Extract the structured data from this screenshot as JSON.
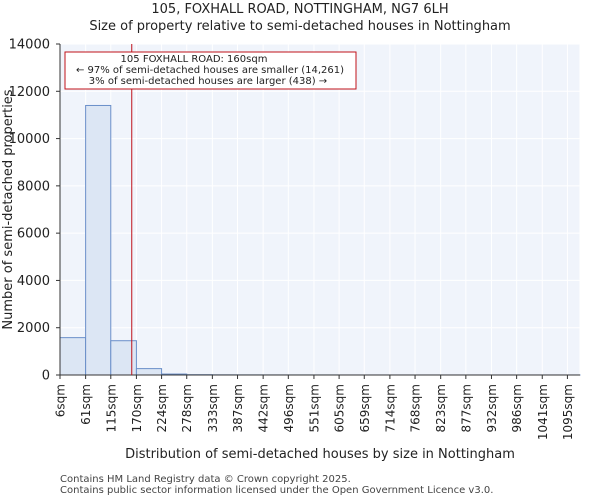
{
  "chart_data": {
    "type": "bar",
    "title": "105, FOXHALL ROAD, NOTTINGHAM, NG7 6LH",
    "subtitle": "Size of property relative to semi-detached houses in Nottingham",
    "xlabel": "Distribution of semi-detached houses by size in Nottingham",
    "ylabel": "Number of semi-detached properties",
    "ylim": [
      0,
      14000
    ],
    "yticks": [
      0,
      2000,
      4000,
      6000,
      8000,
      10000,
      12000,
      14000
    ],
    "xlim": [
      6,
      1122
    ],
    "bin_edges": [
      6,
      61,
      115,
      170,
      224,
      278,
      333,
      387,
      442,
      496,
      551,
      605,
      659,
      714,
      768,
      823,
      877,
      932,
      986,
      1041,
      1095,
      1122
    ],
    "categories": [
      "6sqm",
      "61sqm",
      "115sqm",
      "170sqm",
      "224sqm",
      "278sqm",
      "333sqm",
      "387sqm",
      "442sqm",
      "496sqm",
      "551sqm",
      "605sqm",
      "659sqm",
      "714sqm",
      "768sqm",
      "823sqm",
      "877sqm",
      "932sqm",
      "986sqm",
      "1041sqm",
      "1095sqm"
    ],
    "values": [
      1580,
      11400,
      1450,
      270,
      40,
      12,
      6,
      4,
      3,
      2,
      2,
      1,
      1,
      1,
      1,
      1,
      1,
      1,
      1,
      1,
      1
    ],
    "marker": {
      "x": 160,
      "label": "105 FOXHALL ROAD: 160sqm",
      "line2": "← 97% of semi-detached houses are smaller (14,261)",
      "line3": "3% of semi-detached houses are larger (438) →"
    },
    "colors": {
      "bar_fill": "#dce6f4",
      "bar_stroke": "#6a8fc9",
      "plot_bg": "#f0f4fb",
      "grid": "#ffffff",
      "marker": "#c0121a",
      "annotation_border": "#c0121a"
    },
    "grid": true
  },
  "footer": {
    "line1": "Contains HM Land Registry data © Crown copyright 2025.",
    "line2": "Contains public sector information licensed under the Open Government Licence v3.0."
  }
}
